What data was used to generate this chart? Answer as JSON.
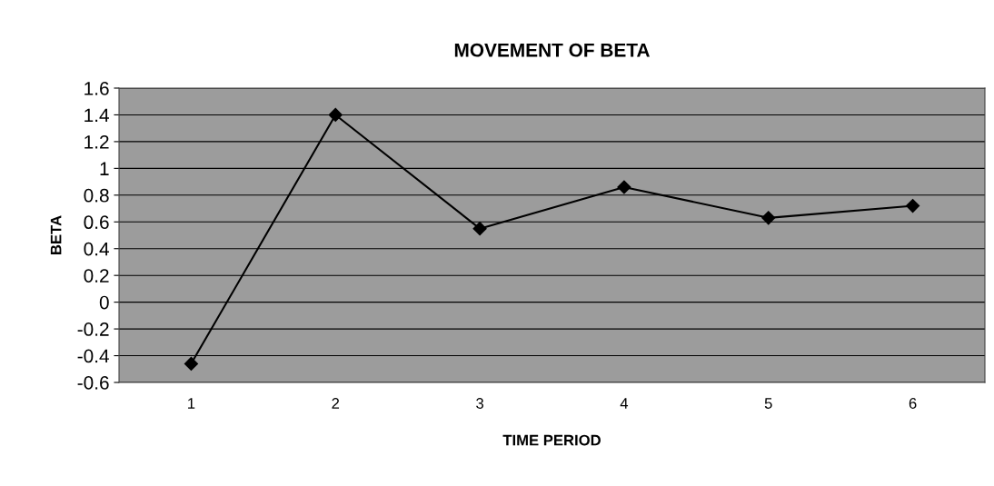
{
  "chart_data": {
    "type": "line",
    "title": "MOVEMENT OF BETA",
    "xlabel": "TIME PERIOD",
    "ylabel": "BETA",
    "categories": [
      "1",
      "2",
      "3",
      "4",
      "5",
      "6"
    ],
    "series": [
      {
        "color": "#000000",
        "values": [
          -0.46,
          1.4,
          0.55,
          0.86,
          0.63,
          0.72
        ]
      }
    ],
    "ylim": [
      -0.6,
      1.6
    ],
    "yticks": [
      -0.6,
      -0.4,
      -0.2,
      0,
      0.2,
      0.4,
      0.6,
      0.8,
      1,
      1.2,
      1.4,
      1.6
    ],
    "grid": "y",
    "marker": "diamond",
    "line_style": "solid"
  }
}
